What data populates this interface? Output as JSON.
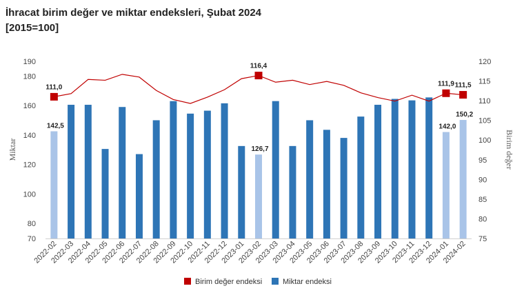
{
  "title": {
    "line1": "İhracat birim değer ve miktar endeksleri, Şubat 2024",
    "line2": "[2015=100]"
  },
  "chart_data": {
    "type": "bar",
    "categories": [
      "2022-02",
      "2022-03",
      "2022-04",
      "2022-05",
      "2022-06",
      "2022-07",
      "2022-08",
      "2022-09",
      "2022-10",
      "2022-11",
      "2022-12",
      "2023-01",
      "2023-02",
      "2023-03",
      "2023-04",
      "2023-05",
      "2023-06",
      "2023-07",
      "2023-08",
      "2023-09",
      "2023-10",
      "2023-11",
      "2023-12",
      "2024-01",
      "2024-02"
    ],
    "ylabel_left": "Miktar",
    "ylabel_right": "Birim değer",
    "y_left_ticks": [
      70,
      80,
      100,
      120,
      140,
      160,
      180,
      190
    ],
    "y_right_ticks": [
      75,
      80,
      85,
      90,
      95,
      100,
      105,
      110,
      115,
      120
    ],
    "ylim_left": [
      70,
      190
    ],
    "ylim_right": [
      75,
      120
    ],
    "legend_position": "bottom",
    "grid": false,
    "series": [
      {
        "name": "Birim değer endeksi",
        "type": "line",
        "axis": "right",
        "color": "#c00000",
        "values": [
          111.0,
          111.8,
          115.4,
          115.2,
          116.7,
          116.0,
          112.6,
          110.3,
          109.3,
          110.9,
          112.8,
          115.6,
          116.4,
          114.7,
          115.2,
          114.1,
          114.9,
          113.9,
          112.0,
          110.8,
          109.9,
          111.4,
          109.9,
          111.9,
          111.5
        ],
        "highlight_indices": [
          0,
          12,
          23,
          24
        ],
        "labels": {
          "0": "111,0",
          "12": "116,4",
          "23": "111,9",
          "24": "111,5"
        }
      },
      {
        "name": "Miktar endeksi",
        "type": "bar",
        "axis": "left",
        "color": "#2e75b6",
        "highlight_color": "#a9c4e8",
        "values": [
          142.5,
          160.5,
          160.5,
          130.5,
          159.0,
          127.0,
          150.0,
          163.0,
          154.5,
          156.5,
          161.5,
          132.5,
          126.7,
          163.0,
          132.5,
          150.0,
          143.5,
          138.0,
          152.5,
          160.5,
          164.5,
          163.5,
          165.5,
          142.0,
          150.2
        ],
        "highlight_indices": [
          0,
          12,
          23,
          24
        ],
        "labels": {
          "0": "142,5",
          "12": "126,7",
          "23": "142,0",
          "24": "150,2"
        }
      }
    ]
  }
}
